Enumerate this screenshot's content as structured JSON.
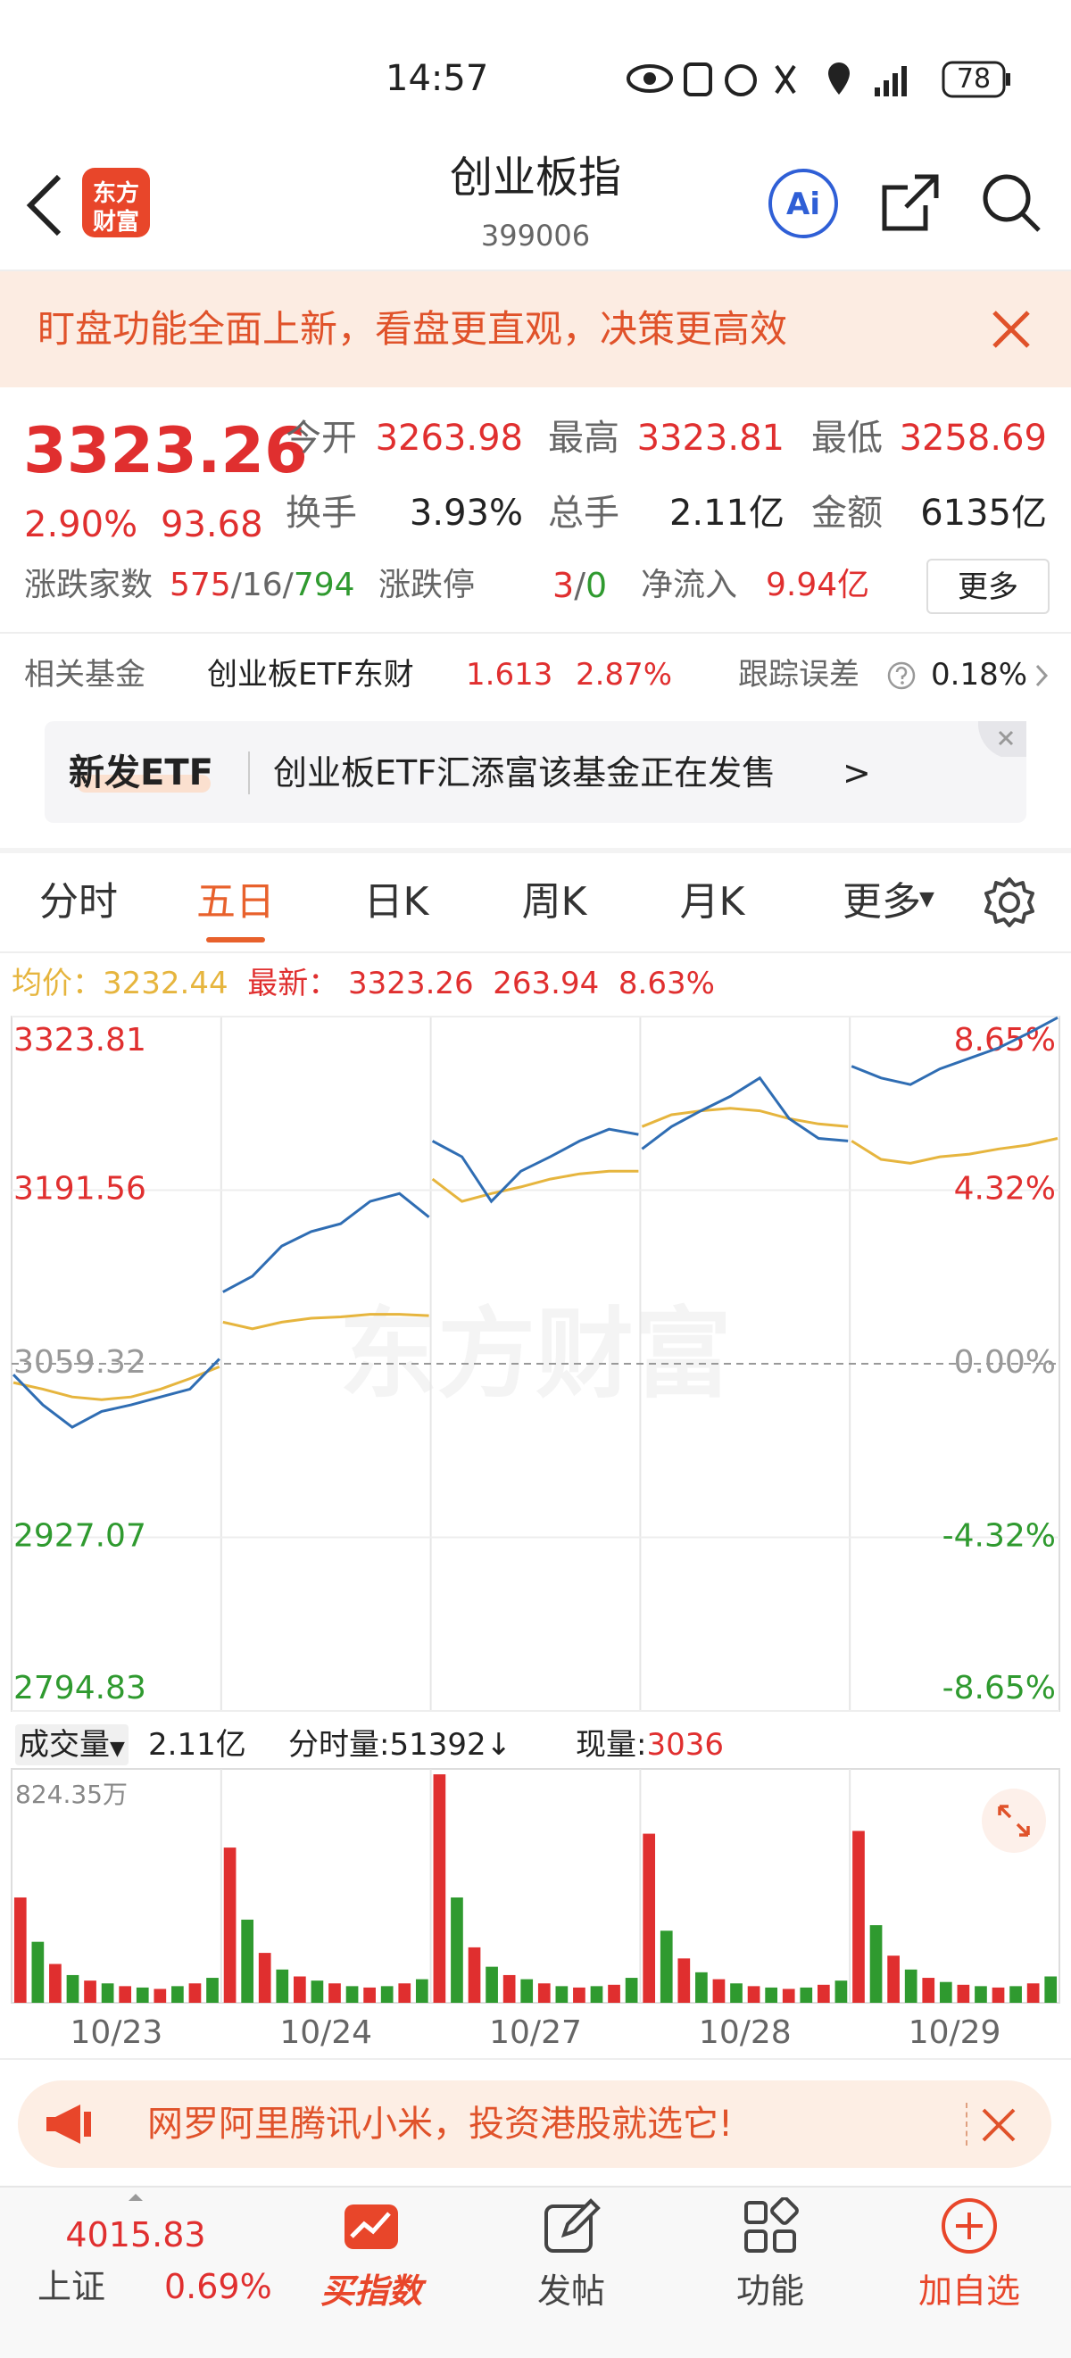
{
  "status_bar": {
    "time": "14:57",
    "battery": "78"
  },
  "header": {
    "logo": [
      "东方",
      "财富"
    ],
    "title": "创业板指",
    "code": "399006",
    "ai": "Ai"
  },
  "banner": {
    "text": "盯盘功能全面上新，看盘更直观，决策更高效"
  },
  "quote": {
    "price": "3323.26",
    "change_pct": "2.90%",
    "change": "93.68",
    "stats": [
      {
        "label": "今开",
        "value": "3263.98"
      },
      {
        "label": "最高",
        "value": "3323.81"
      },
      {
        "label": "最低",
        "value": "3258.69"
      },
      {
        "label": "换手",
        "value": "3.93%"
      },
      {
        "label": "总手",
        "value": "2.11亿"
      },
      {
        "label": "金额",
        "value": "6135亿"
      }
    ],
    "breadth": {
      "label": "涨跌家数",
      "up": "575",
      "flat": "16",
      "down": "794"
    },
    "limit": {
      "label": "涨跌停",
      "up": "3",
      "down": "0"
    },
    "inflow": {
      "label": "净流入",
      "value": "9.94亿"
    },
    "more": "更多"
  },
  "fund": {
    "label": "相关基金",
    "name": "创业板ETF东财",
    "price": "1.613",
    "pct": "2.87%",
    "err_label": "跟踪误差",
    "err": "0.18%"
  },
  "etf_card": {
    "tag": "新发ETF",
    "text": "创业板ETF汇添富该基金正在发售",
    "arrow": ">"
  },
  "tabs": {
    "items": [
      "分时",
      "五日",
      "日K",
      "周K",
      "月K",
      "更多"
    ],
    "active": 1
  },
  "chart": {
    "legend": {
      "avg_label": "均价：",
      "avg": "3232.44",
      "last_label": "最新：",
      "last": "3323.26",
      "change": "263.94",
      "pct": "8.63%"
    },
    "watermark": "东方财富",
    "ylim": [
      2794.83,
      3323.81
    ],
    "yticks": [
      3323.81,
      3191.56,
      3059.32,
      2927.07,
      2794.83
    ],
    "y2lim": [
      -8.65,
      8.65
    ],
    "y2ticks": [
      {
        "value": 8.65,
        "label": "8.65%"
      },
      {
        "value": 4.32,
        "label": "4.32%"
      },
      {
        "value": 0,
        "label": "0.00%"
      },
      {
        "value": -4.32,
        "label": "-4.32%"
      },
      {
        "value": -8.65,
        "label": "-8.65%"
      }
    ],
    "price_color": "#2f6db3",
    "avg_color": "#e6b53e",
    "up_color": "#e02f2f",
    "down_color": "#2f9a2f",
    "days": [
      {
        "date": "10/23",
        "price": [
          3051,
          3028,
          3011,
          3023,
          3028,
          3034,
          3040,
          3063
        ],
        "avg": [
          3045,
          3040,
          3034,
          3032,
          3034,
          3040,
          3048,
          3057
        ],
        "volume": [
          380,
          220,
          140,
          100,
          80,
          70,
          60,
          55,
          50,
          60,
          70,
          90
        ]
      },
      {
        "date": "10/24",
        "price": [
          3114,
          3126,
          3149,
          3160,
          3166,
          3183,
          3189,
          3171
        ],
        "avg": [
          3091,
          3086,
          3091,
          3094,
          3095,
          3097,
          3097,
          3096
        ],
        "volume": [
          560,
          300,
          180,
          120,
          95,
          80,
          70,
          60,
          55,
          60,
          70,
          85
        ]
      },
      {
        "date": "10/27",
        "price": [
          3229,
          3217,
          3183,
          3206,
          3217,
          3229,
          3238,
          3234
        ],
        "avg": [
          3200,
          3183,
          3189,
          3194,
          3200,
          3204,
          3206,
          3206
        ],
        "volume": [
          824.35,
          380,
          200,
          130,
          100,
          85,
          70,
          60,
          55,
          60,
          65,
          90
        ]
      },
      {
        "date": "10/28",
        "price": [
          3223,
          3240,
          3252,
          3263,
          3277,
          3246,
          3231,
          3229
        ],
        "avg": [
          3240,
          3249,
          3252,
          3254,
          3252,
          3246,
          3242,
          3240
        ],
        "volume": [
          610,
          260,
          160,
          110,
          85,
          70,
          60,
          55,
          50,
          55,
          65,
          80
        ]
      },
      {
        "date": "10/29",
        "price": [
          3286,
          3277,
          3272,
          3284,
          3292,
          3300,
          3311,
          3323
        ],
        "avg": [
          3229,
          3215,
          3212,
          3217,
          3219,
          3223,
          3226,
          3231
        ],
        "volume": [
          620,
          280,
          170,
          120,
          90,
          75,
          65,
          60,
          55,
          60,
          70,
          95
        ]
      }
    ],
    "volume_legend": {
      "label": "成交量",
      "total": "2.11亿",
      "tick_label": "分时量:",
      "tick": "51392",
      "now_label": "现量:",
      "now": "3036"
    },
    "vol_ylim": [
      0,
      824.35
    ],
    "vol_yticks": [
      {
        "value": 824.35,
        "label": "824.35万"
      }
    ]
  },
  "ad": {
    "text": "网罗阿里腾讯小米，投资港股就选它!"
  },
  "nav": {
    "index_value": "4015.83",
    "index_name": "上证",
    "index_pct": "0.69%",
    "items": [
      "买指数",
      "发帖",
      "功能",
      "加自选"
    ]
  }
}
